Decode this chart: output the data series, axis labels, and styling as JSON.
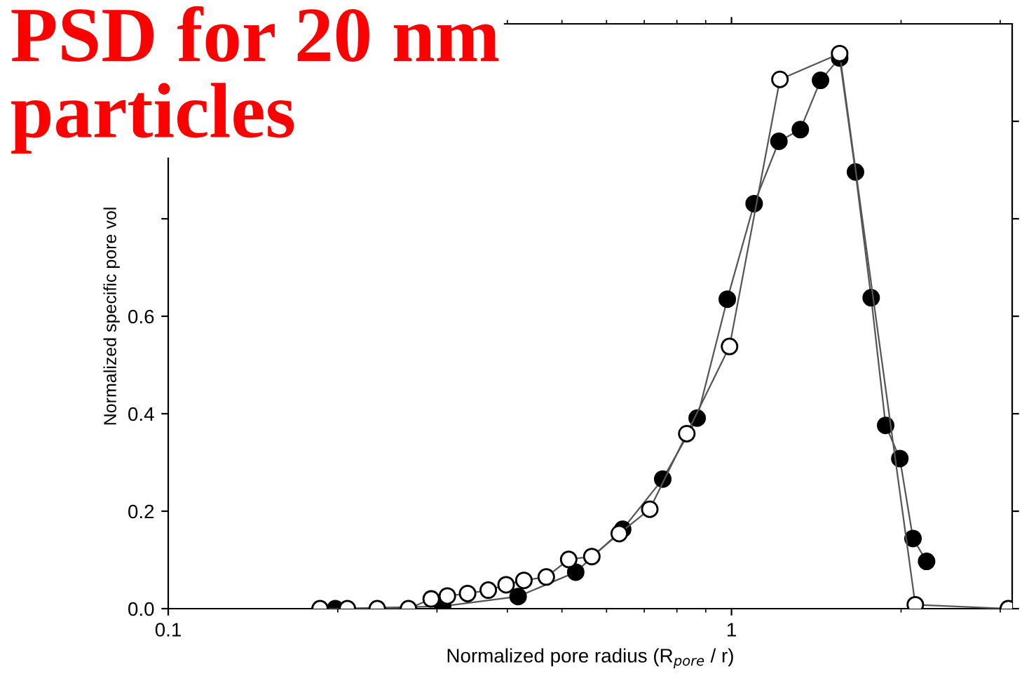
{
  "chart_data": {
    "type": "line",
    "title": "PSD for 20 nm\nparticles",
    "xlabel": "Normalized pore radius (R$_{pore}$ / r)",
    "ylabel": "Normalized specific pore vol",
    "log": "x",
    "marker": "circle",
    "line_style": "solid",
    "grid": false,
    "legend": false,
    "xlim": [
      0.1,
      3.15
    ],
    "xticks": [
      0.1,
      1
    ],
    "ylim": [
      0,
      1.2
    ],
    "yticks": [
      {
        "value": 0,
        "label": "0.0"
      },
      0.2,
      0.4,
      0.6,
      {
        "value": 0.8,
        "label": null
      },
      {
        "value": 1.0,
        "label": null
      }
    ],
    "series": [
      {
        "color": "#000000",
        "x": [
          0.198,
          0.307,
          0.418,
          0.529,
          0.641,
          0.755,
          0.869,
          0.983,
          1.097,
          1.214,
          1.325,
          1.439,
          1.556,
          1.66,
          1.77,
          1.878,
          1.99,
          2.1,
          2.22
        ],
        "values": [
          0.0,
          0.005,
          0.025,
          0.075,
          0.163,
          0.266,
          0.391,
          0.635,
          0.831,
          0.959,
          0.983,
          1.084,
          1.13,
          0.896,
          0.638,
          0.376,
          0.308,
          0.144,
          0.097
        ]
      },
      {
        "color": "#ffffff",
        "x": [
          0.186,
          0.208,
          0.235,
          0.267,
          0.293,
          0.313,
          0.34,
          0.37,
          0.398,
          0.428,
          0.469,
          0.514,
          0.565,
          0.632,
          0.716,
          0.833,
          0.992,
          1.219,
          1.556,
          2.12,
          3.1
        ],
        "values": [
          0.0,
          0.0,
          0.0,
          0.0,
          0.02,
          0.026,
          0.031,
          0.038,
          0.049,
          0.058,
          0.065,
          0.101,
          0.107,
          0.154,
          0.204,
          0.359,
          0.538,
          1.086,
          1.139,
          0.008,
          0.0
        ]
      }
    ]
  }
}
